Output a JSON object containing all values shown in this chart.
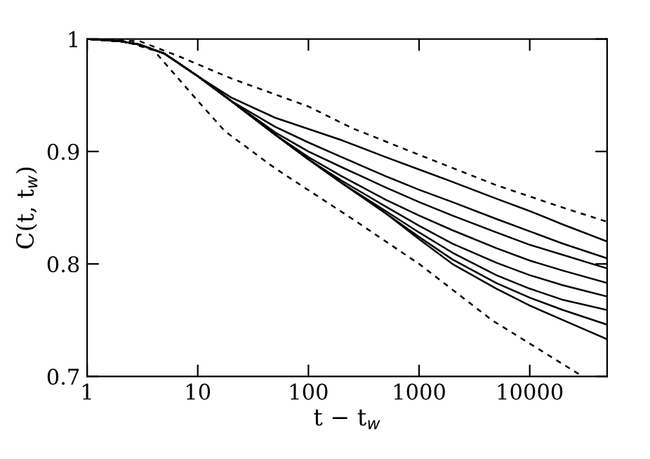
{
  "chart_data": {
    "type": "line",
    "xlabel": "t − t$_{w}$",
    "ylabel": "C(t, t$_{w}$)",
    "log": "x",
    "xlim": [
      1,
      50000
    ],
    "xticks": [
      1,
      10,
      100,
      1000,
      10000
    ],
    "ylim": [
      0.7,
      1
    ],
    "yticks": [
      0.7,
      0.8,
      0.9,
      {
        "value": 1,
        "label": "1"
      }
    ],
    "grid": false,
    "legend": false,
    "marker": "none",
    "series": [
      {
        "color": "#000000",
        "line_style": "dashed",
        "x": [
          1,
          3,
          7,
          20,
          100,
          245,
          1000,
          5000,
          20000,
          50000
        ],
        "values": [
          1.0,
          0.998,
          0.984,
          0.965,
          0.94,
          0.921,
          0.897,
          0.87,
          0.85,
          0.8375
        ]
      },
      {
        "color": "#000000",
        "line_style": "dashed",
        "x": [
          1,
          2,
          4,
          10,
          17.6,
          50,
          250,
          1000,
          4560,
          30000
        ],
        "values": [
          1.0,
          0.999,
          0.99,
          0.945,
          0.918,
          0.885,
          0.84,
          0.8,
          0.75,
          0.7
        ]
      },
      {
        "color": "#000000",
        "line_style": "solid",
        "x": [
          1,
          2,
          3,
          5,
          10,
          20,
          50,
          100,
          200,
          500,
          1000,
          2000,
          5000,
          10000,
          20000,
          50000
        ],
        "values": [
          1.0,
          0.998,
          0.995,
          0.987,
          0.967,
          0.948,
          0.93,
          0.92,
          0.91,
          0.895,
          0.884,
          0.873,
          0.858,
          0.847,
          0.835,
          0.82
        ]
      },
      {
        "color": "#000000",
        "line_style": "solid",
        "x": [
          1,
          2,
          3,
          5,
          10,
          20,
          50,
          100,
          200,
          500,
          1000,
          2000,
          5000,
          10000,
          20000,
          50000
        ],
        "values": [
          1.0,
          0.998,
          0.995,
          0.987,
          0.967,
          0.945,
          0.922,
          0.908,
          0.895,
          0.878,
          0.866,
          0.855,
          0.84,
          0.829,
          0.818,
          0.805
        ]
      },
      {
        "color": "#000000",
        "line_style": "solid",
        "x": [
          1,
          2,
          3,
          5,
          10,
          20,
          50,
          100,
          200,
          500,
          1000,
          2000,
          5000,
          10000,
          20000,
          50000
        ],
        "values": [
          1.0,
          0.998,
          0.995,
          0.987,
          0.967,
          0.945,
          0.917,
          0.9,
          0.886,
          0.868,
          0.855,
          0.843,
          0.828,
          0.817,
          0.808,
          0.796
        ]
      },
      {
        "color": "#000000",
        "line_style": "solid",
        "x": [
          1,
          2,
          3,
          5,
          10,
          20,
          50,
          100,
          200,
          500,
          1000,
          2000,
          5000,
          10000,
          20000,
          50000
        ],
        "values": [
          1.0,
          0.998,
          0.995,
          0.987,
          0.967,
          0.945,
          0.915,
          0.895,
          0.878,
          0.857,
          0.843,
          0.83,
          0.814,
          0.803,
          0.794,
          0.783
        ]
      },
      {
        "color": "#000000",
        "line_style": "solid",
        "x": [
          1,
          2,
          3,
          5,
          10,
          20,
          50,
          100,
          200,
          500,
          1000,
          2000,
          5000,
          10000,
          20000,
          50000
        ],
        "values": [
          1.0,
          0.998,
          0.995,
          0.987,
          0.967,
          0.945,
          0.915,
          0.893,
          0.874,
          0.851,
          0.834,
          0.818,
          0.801,
          0.79,
          0.781,
          0.771
        ]
      },
      {
        "color": "#000000",
        "line_style": "solid",
        "x": [
          1,
          2,
          3,
          5,
          10,
          20,
          50,
          100,
          200,
          500,
          1000,
          2000,
          5000,
          10000,
          20000,
          50000
        ],
        "values": [
          1.0,
          0.998,
          0.995,
          0.987,
          0.967,
          0.945,
          0.915,
          0.893,
          0.872,
          0.847,
          0.828,
          0.81,
          0.79,
          0.778,
          0.768,
          0.759
        ]
      },
      {
        "color": "#000000",
        "line_style": "solid",
        "x": [
          1,
          2,
          3,
          5,
          10,
          20,
          50,
          100,
          200,
          500,
          1000,
          2000,
          5000,
          10000,
          20000,
          50000
        ],
        "values": [
          1.0,
          0.998,
          0.995,
          0.987,
          0.967,
          0.945,
          0.915,
          0.893,
          0.872,
          0.845,
          0.824,
          0.804,
          0.783,
          0.77,
          0.759,
          0.746
        ]
      },
      {
        "color": "#000000",
        "line_style": "solid",
        "x": [
          1,
          2,
          3,
          5,
          10,
          20,
          50,
          100,
          200,
          500,
          1000,
          2000,
          5000,
          10000,
          20000,
          50000
        ],
        "values": [
          1.0,
          0.998,
          0.995,
          0.987,
          0.967,
          0.945,
          0.915,
          0.893,
          0.872,
          0.845,
          0.822,
          0.8,
          0.778,
          0.763,
          0.75,
          0.733
        ]
      }
    ]
  }
}
